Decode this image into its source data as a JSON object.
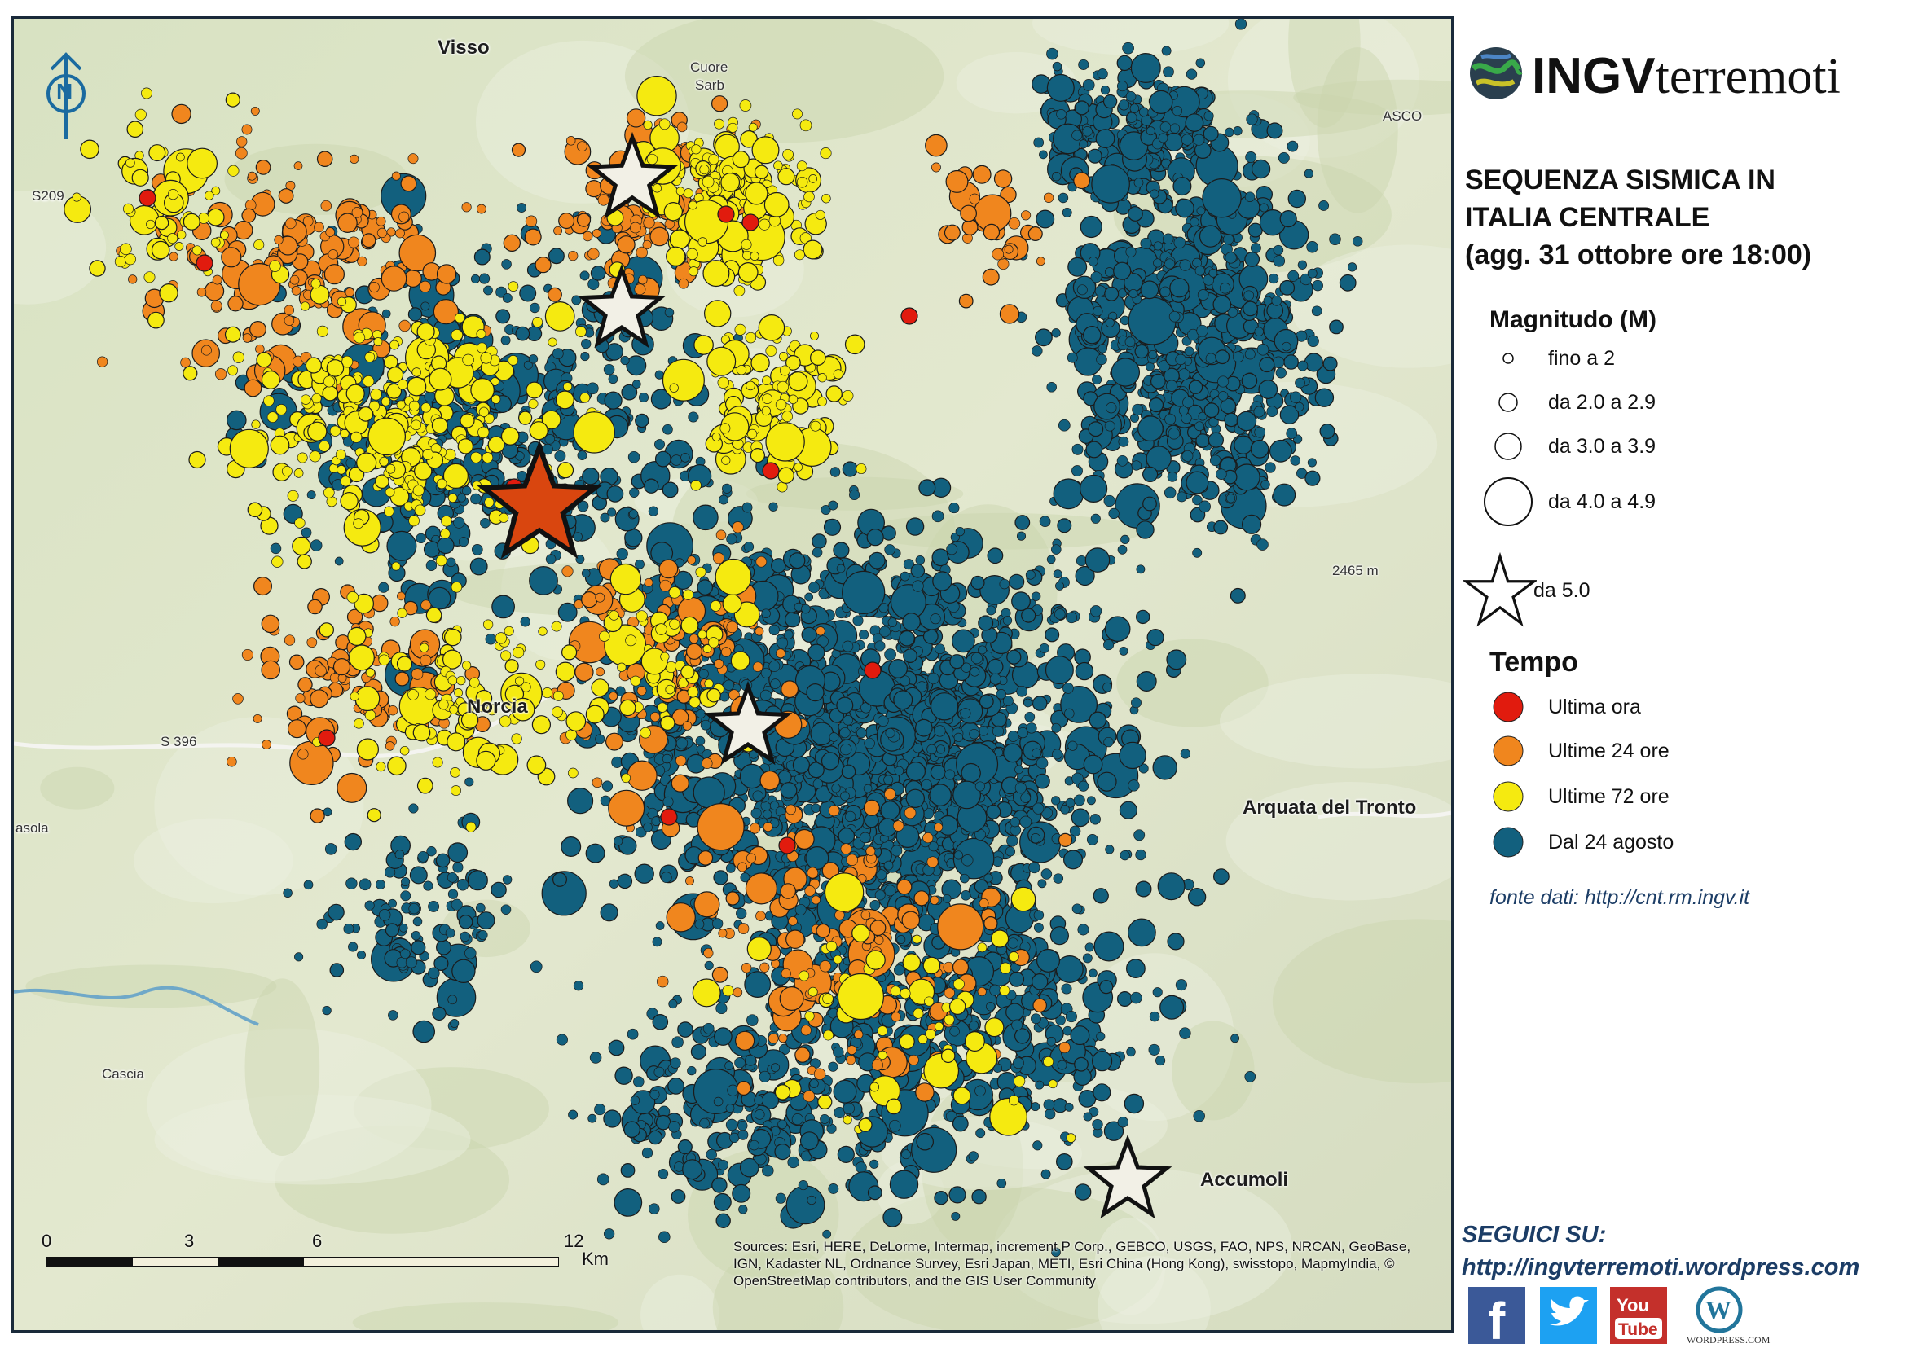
{
  "map": {
    "places": [
      {
        "name": "Visso"
      },
      {
        "name": "Norcia"
      },
      {
        "name": "Arquata del Tronto"
      },
      {
        "name": "Accumoli"
      },
      {
        "name": "Cascia"
      },
      {
        "name": "asola"
      },
      {
        "name": "Cuore"
      },
      {
        "name": "Sarb"
      },
      {
        "name": "ASCO"
      },
      {
        "name": "2465 m"
      },
      {
        "name": "S209"
      },
      {
        "name": "S 396"
      }
    ],
    "attribution": "Sources: Esri, HERE, DeLorme, Intermap, increment P Corp., GEBCO, USGS, FAO, NPS, NRCAN, GeoBase, IGN, Kadaster NL, Ordnance Survey, Esri Japan, METI, Esri China (Hong Kong), swisstopo, MapmyIndia, © OpenStreetMap contributors, and the GIS User Community",
    "scale": {
      "ticks": [
        "0",
        "3",
        "6",
        "12"
      ],
      "unit": "Km",
      "tick_km": [
        0,
        3,
        6,
        12
      ]
    },
    "north_arrow": "N",
    "colors": {
      "ultima_ora": "#e11b0e",
      "ultime_24": "#f0861e",
      "ultime_72": "#f5ea10",
      "dal_24_agosto": "#12607e",
      "star_fill": "#f2f0e6",
      "star_main": "#d9460f",
      "water": "#6fa8c8",
      "land": "#dfe6c8"
    },
    "mainshock": {
      "class": "ultima_ora",
      "magnitude_class": "da 5.0"
    },
    "stars": [
      {
        "class": "white"
      },
      {
        "class": "white"
      },
      {
        "class": "white"
      },
      {
        "class": "white"
      },
      {
        "class": "red"
      }
    ]
  },
  "sidebar": {
    "logo": {
      "bold": "INGV",
      "rest": "terremoti",
      "icon": "globe-icon"
    },
    "title_lines": [
      "SEQUENZA SISMICA IN",
      "ITALIA CENTRALE",
      "(agg. 31 ottobre ore 18:00)"
    ],
    "magnitude_heading": "Magnitudo (M)",
    "magnitude_items": [
      {
        "label": "fino a 2"
      },
      {
        "label": "da 2.0 a 2.9"
      },
      {
        "label": "da 3.0 a 3.9"
      },
      {
        "label": "da 4.0 a 4.9"
      },
      {
        "label": "da 5.0"
      }
    ],
    "time_heading": "Tempo",
    "time_items": [
      {
        "label": "Ultima ora",
        "color": "#e11b0e"
      },
      {
        "label": "Ultime 24 ore",
        "color": "#f0861e"
      },
      {
        "label": "Ultime 72 ore",
        "color": "#f5ea10"
      },
      {
        "label": "Dal 24 agosto",
        "color": "#12607e"
      }
    ],
    "fonte": "fonte dati: http://cnt.rm.ingv.it",
    "seguici_label": "SEGUICI SU:",
    "seguici_url": "http://ingvterremoti.wordpress.com",
    "social": [
      {
        "icon": "facebook-icon",
        "glyph": "f",
        "color": "#3b5998"
      },
      {
        "icon": "twitter-icon",
        "glyph": "t",
        "color": "#1da1f2"
      },
      {
        "icon": "youtube-icon",
        "glyph": "You Tube",
        "color": "#c4302b"
      },
      {
        "icon": "wordpress-icon",
        "glyph": "W",
        "color": "#21759b",
        "caption": "WORDPRESS.COM"
      }
    ]
  }
}
